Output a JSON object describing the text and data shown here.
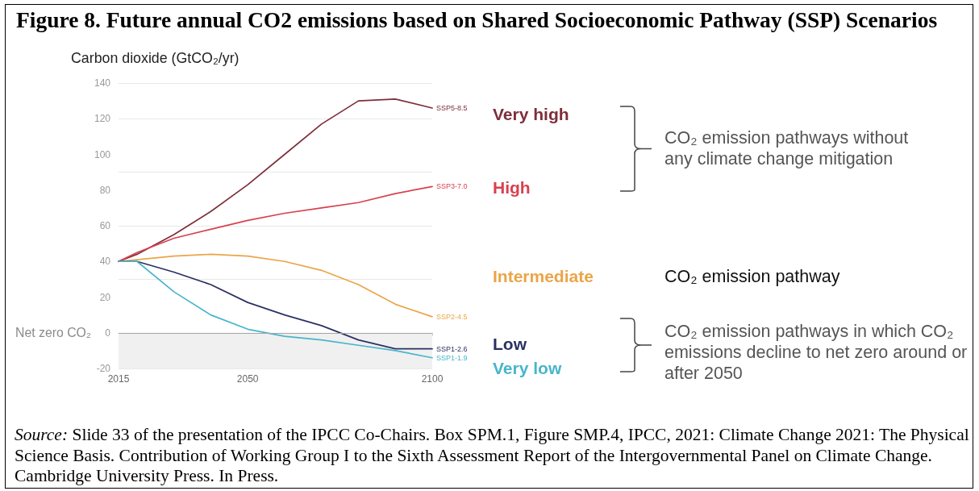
{
  "chart_data": {
    "type": "line",
    "title": "Figure 8. Future annual CO2 emissions based on Shared Socioeconomic Pathway (SSP) Scenarios",
    "ylabel": "Carbon dioxide (GtCO₂/yr)",
    "x": [
      2015,
      2020,
      2030,
      2040,
      2050,
      2060,
      2070,
      2080,
      2090,
      2100
    ],
    "series": [
      {
        "name": "SSP5-8.5",
        "color": "#7d2f3a",
        "values": [
          40,
          44,
          55,
          68,
          83,
          100,
          117,
          130,
          131,
          126
        ]
      },
      {
        "name": "SSP3-7.0",
        "color": "#d9414f",
        "values": [
          40,
          45,
          53,
          58,
          63,
          67,
          70,
          73,
          78,
          82
        ]
      },
      {
        "name": "SSP2-4.5",
        "color": "#eba548",
        "values": [
          40,
          41,
          43,
          44,
          43,
          40,
          35,
          27,
          16,
          9
        ]
      },
      {
        "name": "SSP1-2.6",
        "color": "#2b3163",
        "values": [
          40,
          40,
          34,
          27,
          17,
          10,
          4,
          -4,
          -9,
          -9
        ]
      },
      {
        "name": "SSP1-1.9",
        "color": "#48b5cc",
        "values": [
          40,
          40,
          23,
          10,
          2,
          -2,
          -4,
          -7,
          -10,
          -14
        ]
      }
    ],
    "xlim": [
      2015,
      2100
    ],
    "xticks": [
      2015,
      2050,
      2100
    ],
    "ylim": [
      -20,
      140
    ],
    "yticks": [
      -20,
      0,
      20,
      40,
      60,
      80,
      100,
      120,
      140
    ],
    "grid": "y",
    "ref_lines": [
      {
        "axis": "y",
        "value": 0,
        "label": "Net zero CO₂",
        "color": "#a6a6a6"
      }
    ],
    "bands": [
      {
        "axis": "y",
        "from": -20,
        "to": 0,
        "color": "#f0f0f0"
      }
    ],
    "annotations": [
      "Very high",
      "High",
      "Intermediate",
      "Low",
      "Very low",
      "CO₂ emission pathways without any climate change mitigation",
      "CO₂ emission pathway",
      "CO₂ emission pathways in which CO₂ emissions decline to net zero around or after 2050",
      "Source: Slide 33 of the presentation of the IPCC Co-Chairs. Box SPM.1, Figure SMP.4, IPCC, 2021: Climate Change 2021: The Physical Science Basis. Contribution of Working Group I to the Sixth Assessment Report of the Intergovernmental Panel on Climate Change. Cambridge University Press. In Press."
    ]
  }
}
